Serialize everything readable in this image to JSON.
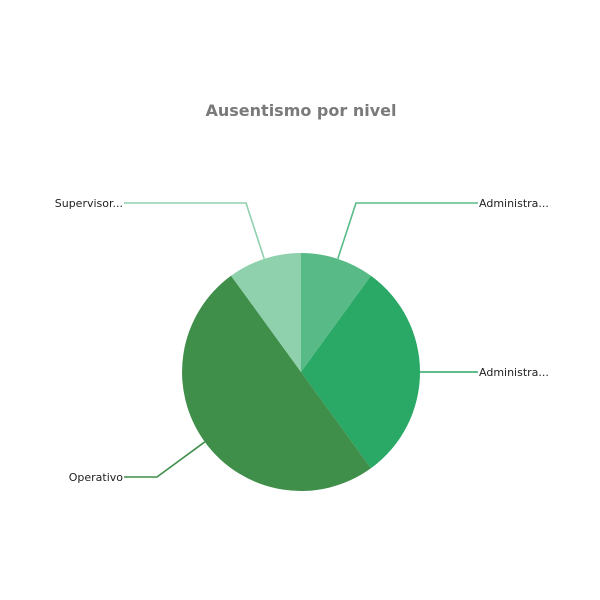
{
  "chart_data": {
    "type": "pie",
    "title": "Ausentismo por nivel",
    "slices": [
      {
        "label": "Administra...",
        "value": 10,
        "color": "#58bb87"
      },
      {
        "label": "Administra...",
        "value": 30,
        "color": "#2aa866"
      },
      {
        "label": "Operativo",
        "value": 50,
        "color": "#3f8e49"
      },
      {
        "label": "Supervisor...",
        "value": 10,
        "color": "#8fd1ad"
      }
    ],
    "legend": "none",
    "start_angle": "top",
    "direction": "clockwise"
  }
}
